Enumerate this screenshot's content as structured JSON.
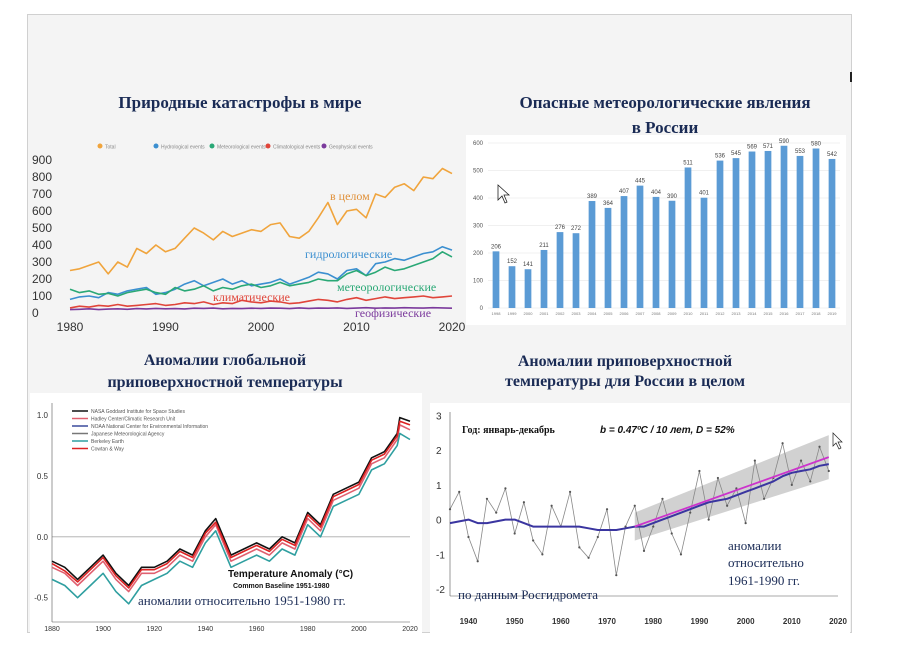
{
  "slide": {
    "background": "#f4f4f4"
  },
  "titles": {
    "c1": "Природные катастрофы в мире",
    "c2_line1": "Опасные метеорологические явления",
    "c2_line2": "в России",
    "c3_line1": "Аномалии глобальной",
    "c3_line2": "приповерхностной температуры",
    "c4_line1": "Аномалии приповерхностной",
    "c4_line2": "температуры для России в целом"
  },
  "chart_data": [
    {
      "type": "line",
      "legend": [
        "Total",
        "Hydrological events",
        "Meteorological events",
        "Climatological events",
        "Geophysical events"
      ],
      "annotations": [
        "в целом",
        "гидрологические",
        "метеорологические",
        "климатические",
        "геофизические"
      ],
      "x_ticks": [
        "1980",
        "1990",
        "2000",
        "2010",
        "2020"
      ],
      "y_ticks": [
        "0",
        "100",
        "200",
        "300",
        "400",
        "500",
        "600",
        "700",
        "800",
        "900"
      ],
      "xlim": [
        1980,
        2020
      ],
      "ylim": [
        0,
        900
      ],
      "x": [
        1980,
        1981,
        1982,
        1983,
        1984,
        1985,
        1986,
        1987,
        1988,
        1989,
        1990,
        1991,
        1992,
        1993,
        1994,
        1995,
        1996,
        1997,
        1998,
        1999,
        2000,
        2001,
        2002,
        2003,
        2004,
        2005,
        2006,
        2007,
        2008,
        2009,
        2010,
        2011,
        2012,
        2013,
        2014,
        2015,
        2016,
        2017,
        2018,
        2019,
        2020
      ],
      "series": [
        {
          "color": "#f0a43c",
          "values": [
            250,
            260,
            280,
            300,
            230,
            300,
            270,
            380,
            350,
            400,
            360,
            380,
            440,
            500,
            470,
            430,
            480,
            450,
            470,
            490,
            480,
            520,
            530,
            450,
            440,
            480,
            560,
            650,
            520,
            600,
            610,
            560,
            700,
            680,
            740,
            760,
            720,
            800,
            790,
            850,
            820
          ]
        },
        {
          "color": "#3b8fd0",
          "values": [
            80,
            95,
            100,
            90,
            120,
            110,
            130,
            140,
            150,
            110,
            120,
            140,
            170,
            190,
            160,
            180,
            200,
            170,
            190,
            160,
            170,
            180,
            200,
            170,
            190,
            210,
            240,
            230,
            200,
            250,
            260,
            220,
            290,
            300,
            320,
            310,
            330,
            350,
            360,
            390,
            370
          ]
        },
        {
          "color": "#2aa876",
          "values": [
            140,
            120,
            130,
            110,
            115,
            100,
            120,
            130,
            140,
            120,
            110,
            150,
            130,
            140,
            160,
            130,
            150,
            140,
            160,
            170,
            150,
            160,
            180,
            160,
            170,
            180,
            200,
            190,
            190,
            230,
            250,
            220,
            240,
            270,
            250,
            260,
            280,
            300,
            320,
            360,
            330
          ]
        },
        {
          "color": "#e0453a",
          "values": [
            30,
            40,
            35,
            45,
            40,
            50,
            40,
            45,
            50,
            55,
            45,
            50,
            60,
            55,
            65,
            50,
            60,
            55,
            75,
            65,
            60,
            70,
            65,
            55,
            60,
            70,
            80,
            75,
            65,
            80,
            90,
            75,
            85,
            95,
            85,
            90,
            95,
            100,
            90,
            95,
            100
          ]
        },
        {
          "color": "#7b3a9c",
          "values": [
            20,
            22,
            25,
            20,
            23,
            25,
            22,
            26,
            24,
            27,
            25,
            26,
            24,
            28,
            27,
            29,
            25,
            27,
            26,
            28,
            27,
            29,
            28,
            26,
            30,
            27,
            29,
            28,
            30,
            27,
            29,
            31,
            28,
            30,
            29,
            31,
            30,
            29,
            31,
            30,
            28
          ]
        }
      ]
    },
    {
      "type": "bar",
      "categories": [
        "1998",
        "1999",
        "2000",
        "2001",
        "2002",
        "2003",
        "2004",
        "2005",
        "2006",
        "2007",
        "2008",
        "2009",
        "2010",
        "2011",
        "2012",
        "2013",
        "2014",
        "2015",
        "2016",
        "2017",
        "2018",
        "2019"
      ],
      "values": [
        206,
        152,
        141,
        211,
        276,
        272,
        389,
        364,
        407,
        445,
        404,
        390,
        511,
        401,
        536,
        545,
        569,
        571,
        590,
        553,
        580,
        542
      ],
      "y_ticks": [
        "0",
        "100",
        "200",
        "300",
        "400",
        "500",
        "600"
      ],
      "ylim": [
        0,
        600
      ]
    },
    {
      "type": "line",
      "legend": [
        "NASA Goddard Institute for Space Studies",
        "Hadley Center/Climatic Research Unit",
        "NOAA National Center for Environmental Information",
        "Japanese Meteorological Agency",
        "Berkeley Earth",
        "Cowtan & Way"
      ],
      "inner_title": "Temperature Anomaly (°C)",
      "inner_subtitle": "Common Baseline 1951-1980",
      "caption": "аномалии относительно 1951-1980 гг.",
      "x_ticks": [
        "1880",
        "1900",
        "1920",
        "1940",
        "1960",
        "1980",
        "2000",
        "2020"
      ],
      "y_ticks": [
        "1.0",
        "0.5",
        "0.0",
        "-0.5"
      ],
      "xlim": [
        1880,
        2020
      ],
      "ylim": [
        -0.7,
        1.1
      ],
      "x": [
        1880,
        1885,
        1890,
        1895,
        1900,
        1905,
        1910,
        1915,
        1920,
        1925,
        1930,
        1935,
        1940,
        1944,
        1950,
        1955,
        1960,
        1965,
        1970,
        1975,
        1980,
        1985,
        1990,
        1995,
        2000,
        2005,
        2010,
        2015,
        2016,
        2020
      ],
      "series": [
        {
          "color": "#111111",
          "values": [
            -0.2,
            -0.25,
            -0.35,
            -0.25,
            -0.15,
            -0.3,
            -0.4,
            -0.25,
            -0.25,
            -0.2,
            -0.1,
            -0.15,
            0.05,
            0.15,
            -0.15,
            -0.1,
            -0.05,
            -0.1,
            0.0,
            -0.05,
            0.2,
            0.1,
            0.35,
            0.4,
            0.45,
            0.65,
            0.7,
            0.85,
            0.98,
            0.95
          ]
        },
        {
          "color": "#e06070",
          "values": [
            -0.25,
            -0.3,
            -0.4,
            -0.3,
            -0.2,
            -0.35,
            -0.45,
            -0.3,
            -0.3,
            -0.25,
            -0.15,
            -0.2,
            0.0,
            0.1,
            -0.2,
            -0.15,
            -0.1,
            -0.15,
            -0.05,
            -0.1,
            0.15,
            0.05,
            0.3,
            0.35,
            0.4,
            0.6,
            0.65,
            0.8,
            0.92,
            0.88
          ]
        },
        {
          "color": "#2f9fa0",
          "values": [
            -0.35,
            -0.4,
            -0.5,
            -0.4,
            -0.3,
            -0.45,
            -0.55,
            -0.4,
            -0.35,
            -0.3,
            -0.2,
            -0.25,
            -0.05,
            0.05,
            -0.25,
            -0.2,
            -0.15,
            -0.2,
            -0.1,
            -0.15,
            0.1,
            0.0,
            0.25,
            0.3,
            0.35,
            0.55,
            0.6,
            0.75,
            0.85,
            0.8
          ]
        },
        {
          "color": "#dd2222",
          "values": [
            -0.22,
            -0.28,
            -0.37,
            -0.27,
            -0.17,
            -0.32,
            -0.42,
            -0.27,
            -0.27,
            -0.22,
            -0.12,
            -0.17,
            0.03,
            0.12,
            -0.17,
            -0.12,
            -0.07,
            -0.12,
            -0.02,
            -0.07,
            0.18,
            0.08,
            0.33,
            0.38,
            0.43,
            0.63,
            0.68,
            0.83,
            0.95,
            0.92
          ]
        }
      ]
    },
    {
      "type": "line",
      "header_left": "Год: январь-декабрь",
      "header_right": "b = 0.47ºC / 10 лет, D = 52%",
      "annotation_1": "аномалии",
      "annotation_2": "относительно",
      "annotation_3": "1961-1990 гг.",
      "caption": "по данным Росгидромета",
      "x_ticks": [
        "1940",
        "1950",
        "1960",
        "1970",
        "1980",
        "1990",
        "2000",
        "2010",
        "2020"
      ],
      "y_ticks": [
        "3",
        "2",
        "1",
        "0",
        "-1",
        "-2"
      ],
      "xlim": [
        1936,
        2020
      ],
      "ylim": [
        -2.2,
        3.1
      ],
      "x": [
        1936,
        1938,
        1940,
        1942,
        1944,
        1946,
        1948,
        1950,
        1952,
        1954,
        1956,
        1958,
        1960,
        1962,
        1964,
        1966,
        1968,
        1970,
        1972,
        1974,
        1976,
        1978,
        1980,
        1982,
        1984,
        1986,
        1988,
        1990,
        1992,
        1994,
        1996,
        1998,
        2000,
        2002,
        2004,
        2006,
        2008,
        2010,
        2012,
        2014,
        2016,
        2018
      ],
      "values": [
        0.3,
        0.8,
        -0.5,
        -1.2,
        0.6,
        0.2,
        0.9,
        -0.4,
        0.5,
        -0.6,
        -1.0,
        0.4,
        -0.2,
        0.8,
        -0.8,
        -1.1,
        -0.5,
        0.3,
        -1.6,
        -0.2,
        0.4,
        -0.9,
        -0.2,
        0.6,
        -0.4,
        -1.0,
        0.2,
        1.4,
        0.0,
        1.2,
        0.4,
        0.9,
        -0.1,
        1.7,
        0.6,
        1.2,
        2.2,
        1.0,
        1.7,
        1.1,
        2.1,
        1.4
      ],
      "smooth": [
        -0.1,
        -0.05,
        0.0,
        -0.1,
        -0.1,
        -0.05,
        0.0,
        0.0,
        -0.1,
        -0.2,
        -0.2,
        -0.2,
        -0.2,
        -0.2,
        -0.2,
        -0.25,
        -0.3,
        -0.3,
        -0.3,
        -0.25,
        -0.2,
        -0.2,
        -0.1,
        0.0,
        0.1,
        0.2,
        0.3,
        0.4,
        0.5,
        0.55,
        0.6,
        0.7,
        0.8,
        0.9,
        1.0,
        1.1,
        1.25,
        1.35,
        1.4,
        1.45,
        1.55,
        1.6
      ],
      "trend": [
        1976,
        -0.2,
        2018,
        1.8
      ]
    }
  ]
}
